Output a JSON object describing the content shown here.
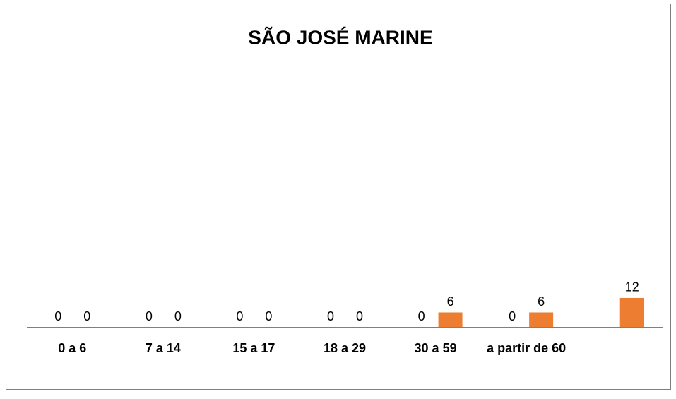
{
  "chart_data": {
    "type": "bar",
    "title": "SÃO JOSÉ MARINE",
    "categories": [
      "0 a 6",
      "7 a 14",
      "15 a 17",
      "18 a 29",
      "30 a 59",
      "a partir de 60",
      null
    ],
    "series": [
      {
        "color": "#4472c4",
        "values": [
          0,
          0,
          0,
          0,
          0,
          0,
          null
        ]
      },
      {
        "color": "#ed7d31",
        "values": [
          0,
          0,
          0,
          0,
          6,
          6,
          12
        ]
      }
    ],
    "ylim": [
      0,
      100
    ]
  }
}
